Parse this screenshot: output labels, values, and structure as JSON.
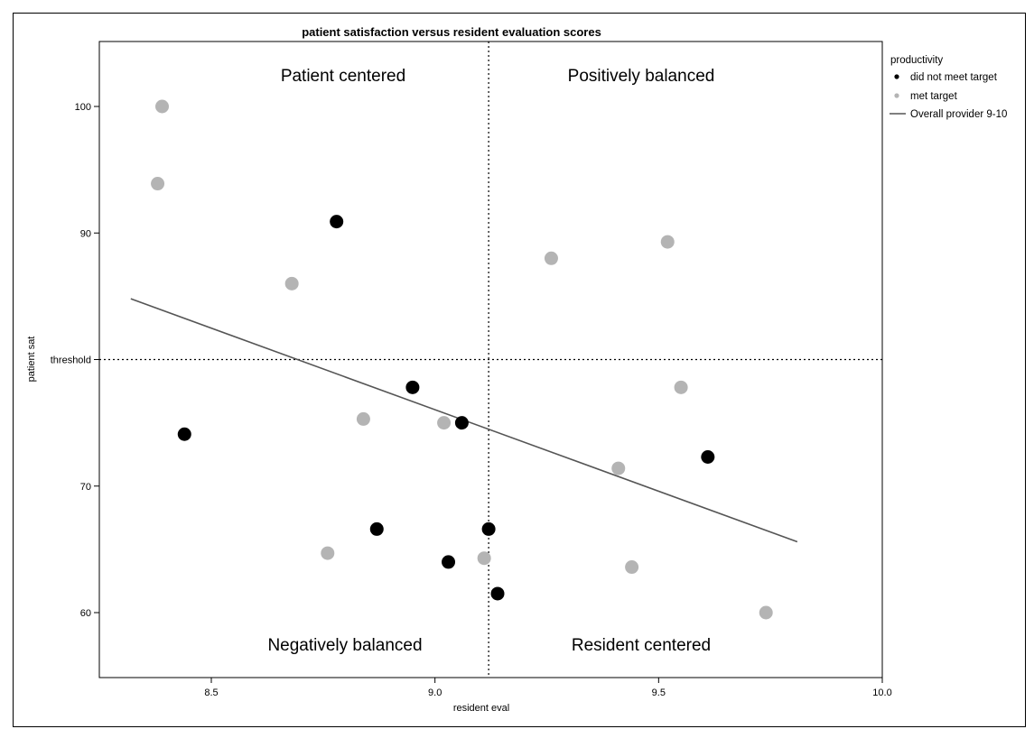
{
  "chart_data": {
    "type": "scatter",
    "title": "patient satisfaction versus resident evaluation scores",
    "xlabel": "resident eval",
    "ylabel": "patient sat",
    "xlim": [
      8.25,
      10.0
    ],
    "ylim": [
      55,
      105
    ],
    "x_ticks": [
      8.5,
      9.0,
      9.5,
      10.0
    ],
    "x_tick_labels": [
      "8.5",
      "9.0",
      "9.5",
      "10.0"
    ],
    "y_ticks": [
      60,
      70,
      80,
      90,
      100
    ],
    "y_tick_labels": [
      "60",
      "70",
      "threshold",
      "90",
      "100"
    ],
    "reference_lines": {
      "x": 9.12,
      "y": 80,
      "style": "dotted"
    },
    "quadrant_labels": {
      "top_left": "Patient centered",
      "top_right": "Positively balanced",
      "bottom_left": "Negatively balanced",
      "bottom_right": "Resident centered"
    },
    "legend": {
      "title": "productivity",
      "position": "top-right",
      "entries": [
        {
          "label": "did not meet target",
          "color": "#000000",
          "kind": "marker"
        },
        {
          "label": "met target",
          "color": "#b4b4b4",
          "kind": "marker"
        },
        {
          "label": "Overall provider 9-10",
          "color": "#555555",
          "kind": "line"
        }
      ]
    },
    "series": [
      {
        "name": "did not meet target",
        "color": "#000000",
        "points": [
          [
            8.44,
            74.1
          ],
          [
            8.78,
            90.9
          ],
          [
            8.87,
            66.6
          ],
          [
            8.95,
            77.8
          ],
          [
            9.03,
            64.0
          ],
          [
            9.06,
            75.0
          ],
          [
            9.12,
            66.6
          ],
          [
            9.14,
            61.5
          ],
          [
            9.61,
            72.3
          ]
        ]
      },
      {
        "name": "met target",
        "color": "#b4b4b4",
        "points": [
          [
            8.38,
            93.9
          ],
          [
            8.39,
            100.0
          ],
          [
            8.68,
            86.0
          ],
          [
            8.76,
            64.7
          ],
          [
            8.84,
            75.3
          ],
          [
            9.02,
            75.0
          ],
          [
            9.11,
            64.3
          ],
          [
            9.26,
            88.0
          ],
          [
            9.41,
            71.4
          ],
          [
            9.44,
            63.6
          ],
          [
            9.52,
            89.3
          ],
          [
            9.55,
            77.8
          ],
          [
            9.74,
            60.0
          ]
        ]
      },
      {
        "name": "Overall provider 9-10",
        "kind": "line",
        "color": "#555555",
        "points": [
          [
            8.32,
            84.8
          ],
          [
            9.81,
            65.6
          ]
        ]
      }
    ]
  }
}
